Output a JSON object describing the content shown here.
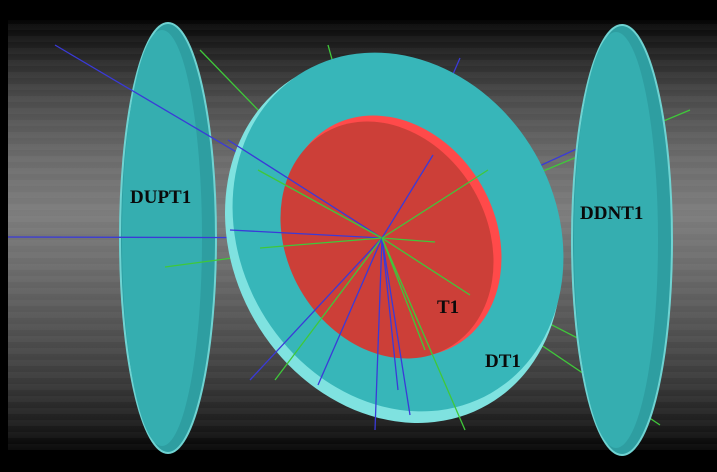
{
  "labels": {
    "dupt1": "DUPT1",
    "ddnt1": "DDNT1",
    "t1": "T1",
    "dt1": "DT1"
  },
  "colors": {
    "cyan_disk": "#37b6b9",
    "cyan_edge": "#7fe2e0",
    "red_target": "#cc3f38",
    "red_edge": "#ff4a4a",
    "track_green": "#3fc83a",
    "track_blue": "#3a3ad8",
    "background": "#000000"
  }
}
